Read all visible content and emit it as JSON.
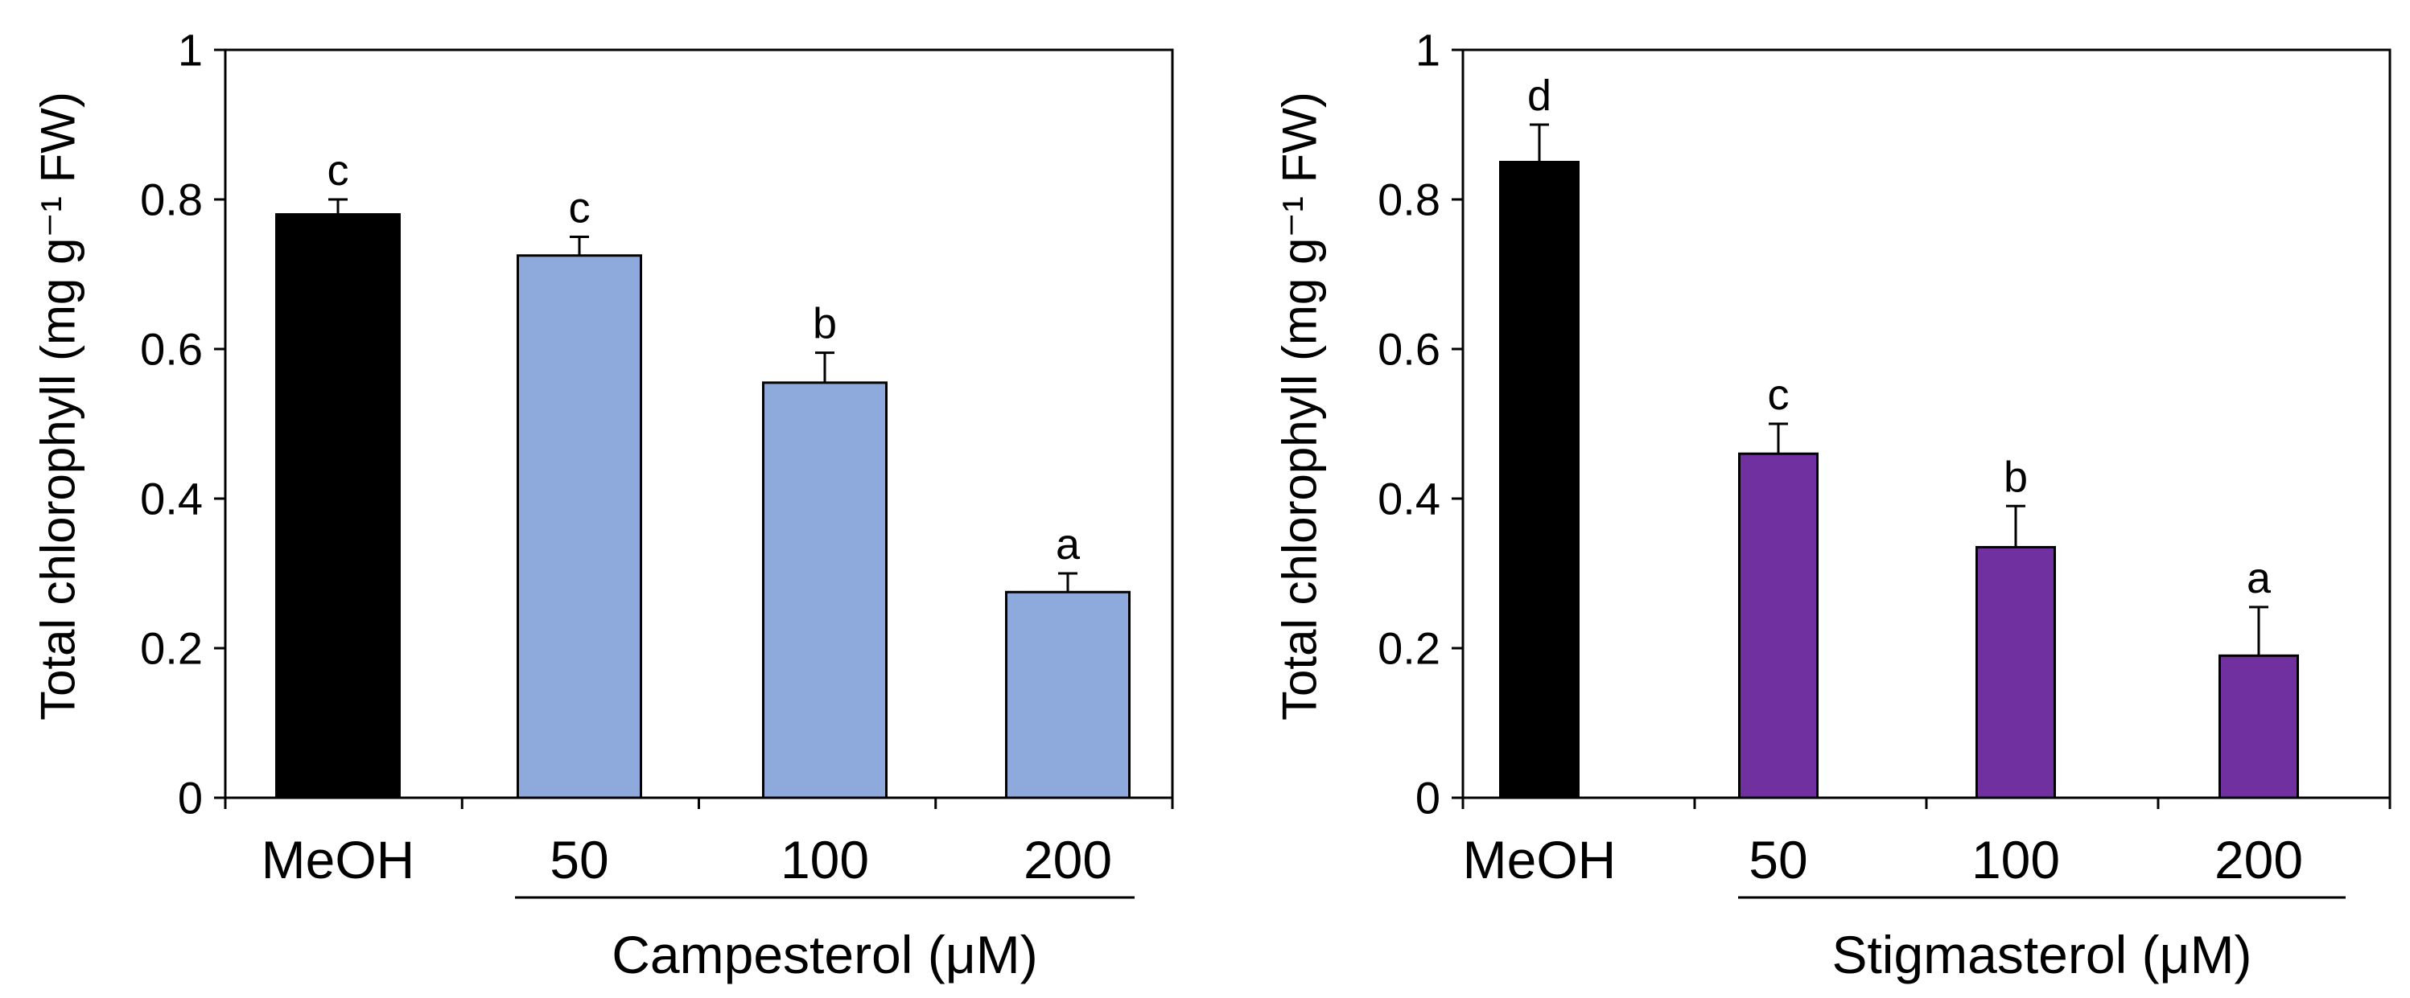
{
  "chart_data": [
    {
      "type": "bar",
      "ylabel": "Total chlorophyll (mg g⁻¹ FW)",
      "ylim": [
        0,
        1
      ],
      "yticks": [
        0,
        0.2,
        0.4,
        0.6,
        0.8,
        1
      ],
      "ytick_labels": [
        "0",
        "0.2",
        "0.4",
        "0.6",
        "0.8",
        "1"
      ],
      "categories": [
        "MeOH",
        "50",
        "100",
        "200"
      ],
      "values": [
        0.78,
        0.725,
        0.555,
        0.275
      ],
      "errors": [
        0.02,
        0.025,
        0.04,
        0.025
      ],
      "significance": [
        "c",
        "c",
        "b",
        "a"
      ],
      "bar_colors": [
        "#000000",
        "#8eaadc",
        "#8eaadc",
        "#8eaadc"
      ],
      "group_label": "Campesterol (μM)",
      "grid": false
    },
    {
      "type": "bar",
      "ylabel": "Total chlorophyll (mg g⁻¹ FW)",
      "ylim": [
        0,
        1
      ],
      "yticks": [
        0,
        0.2,
        0.4,
        0.6,
        0.8,
        1
      ],
      "ytick_labels": [
        "0",
        "0.2",
        "0.4",
        "0.6",
        "0.8",
        "1"
      ],
      "categories": [
        "MeOH",
        "50",
        "100",
        "200"
      ],
      "values": [
        0.85,
        0.46,
        0.335,
        0.19
      ],
      "errors": [
        0.05,
        0.04,
        0.055,
        0.065
      ],
      "significance": [
        "d",
        "c",
        "b",
        "a"
      ],
      "bar_colors": [
        "#000000",
        "#7030a0",
        "#7030a0",
        "#7030a0"
      ],
      "group_label": "Stigmasterol (μM)",
      "grid": false
    }
  ]
}
